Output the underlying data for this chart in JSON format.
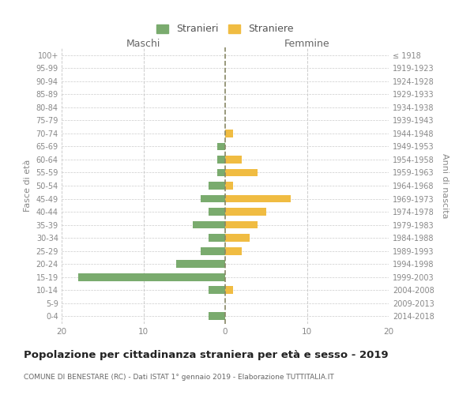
{
  "age_groups": [
    "0-4",
    "5-9",
    "10-14",
    "15-19",
    "20-24",
    "25-29",
    "30-34",
    "35-39",
    "40-44",
    "45-49",
    "50-54",
    "55-59",
    "60-64",
    "65-69",
    "70-74",
    "75-79",
    "80-84",
    "85-89",
    "90-94",
    "95-99",
    "100+"
  ],
  "birth_years": [
    "2014-2018",
    "2009-2013",
    "2004-2008",
    "1999-2003",
    "1994-1998",
    "1989-1993",
    "1984-1988",
    "1979-1983",
    "1974-1978",
    "1969-1973",
    "1964-1968",
    "1959-1963",
    "1954-1958",
    "1949-1953",
    "1944-1948",
    "1939-1943",
    "1934-1938",
    "1929-1933",
    "1924-1928",
    "1919-1923",
    "≤ 1918"
  ],
  "maschi": [
    2,
    0,
    2,
    18,
    6,
    3,
    2,
    4,
    2,
    3,
    2,
    1,
    1,
    1,
    0,
    0,
    0,
    0,
    0,
    0,
    0
  ],
  "femmine": [
    0,
    0,
    1,
    0,
    0,
    2,
    3,
    4,
    5,
    8,
    1,
    4,
    2,
    0,
    1,
    0,
    0,
    0,
    0,
    0,
    0
  ],
  "color_maschi": "#7aab6e",
  "color_femmine": "#f0bc42",
  "background_color": "#ffffff",
  "grid_color": "#cccccc",
  "title": "Popolazione per cittadinanza straniera per età e sesso - 2019",
  "subtitle": "COMUNE DI BENESTARE (RC) - Dati ISTAT 1° gennaio 2019 - Elaborazione TUTTITALIA.IT",
  "ylabel_left": "Fasce di età",
  "ylabel_right": "Anni di nascita",
  "xlabel_left": "Maschi",
  "xlabel_right": "Femmine",
  "legend_stranieri": "Stranieri",
  "legend_straniere": "Straniere",
  "xlim": 20,
  "dashed_line_color": "#888866"
}
